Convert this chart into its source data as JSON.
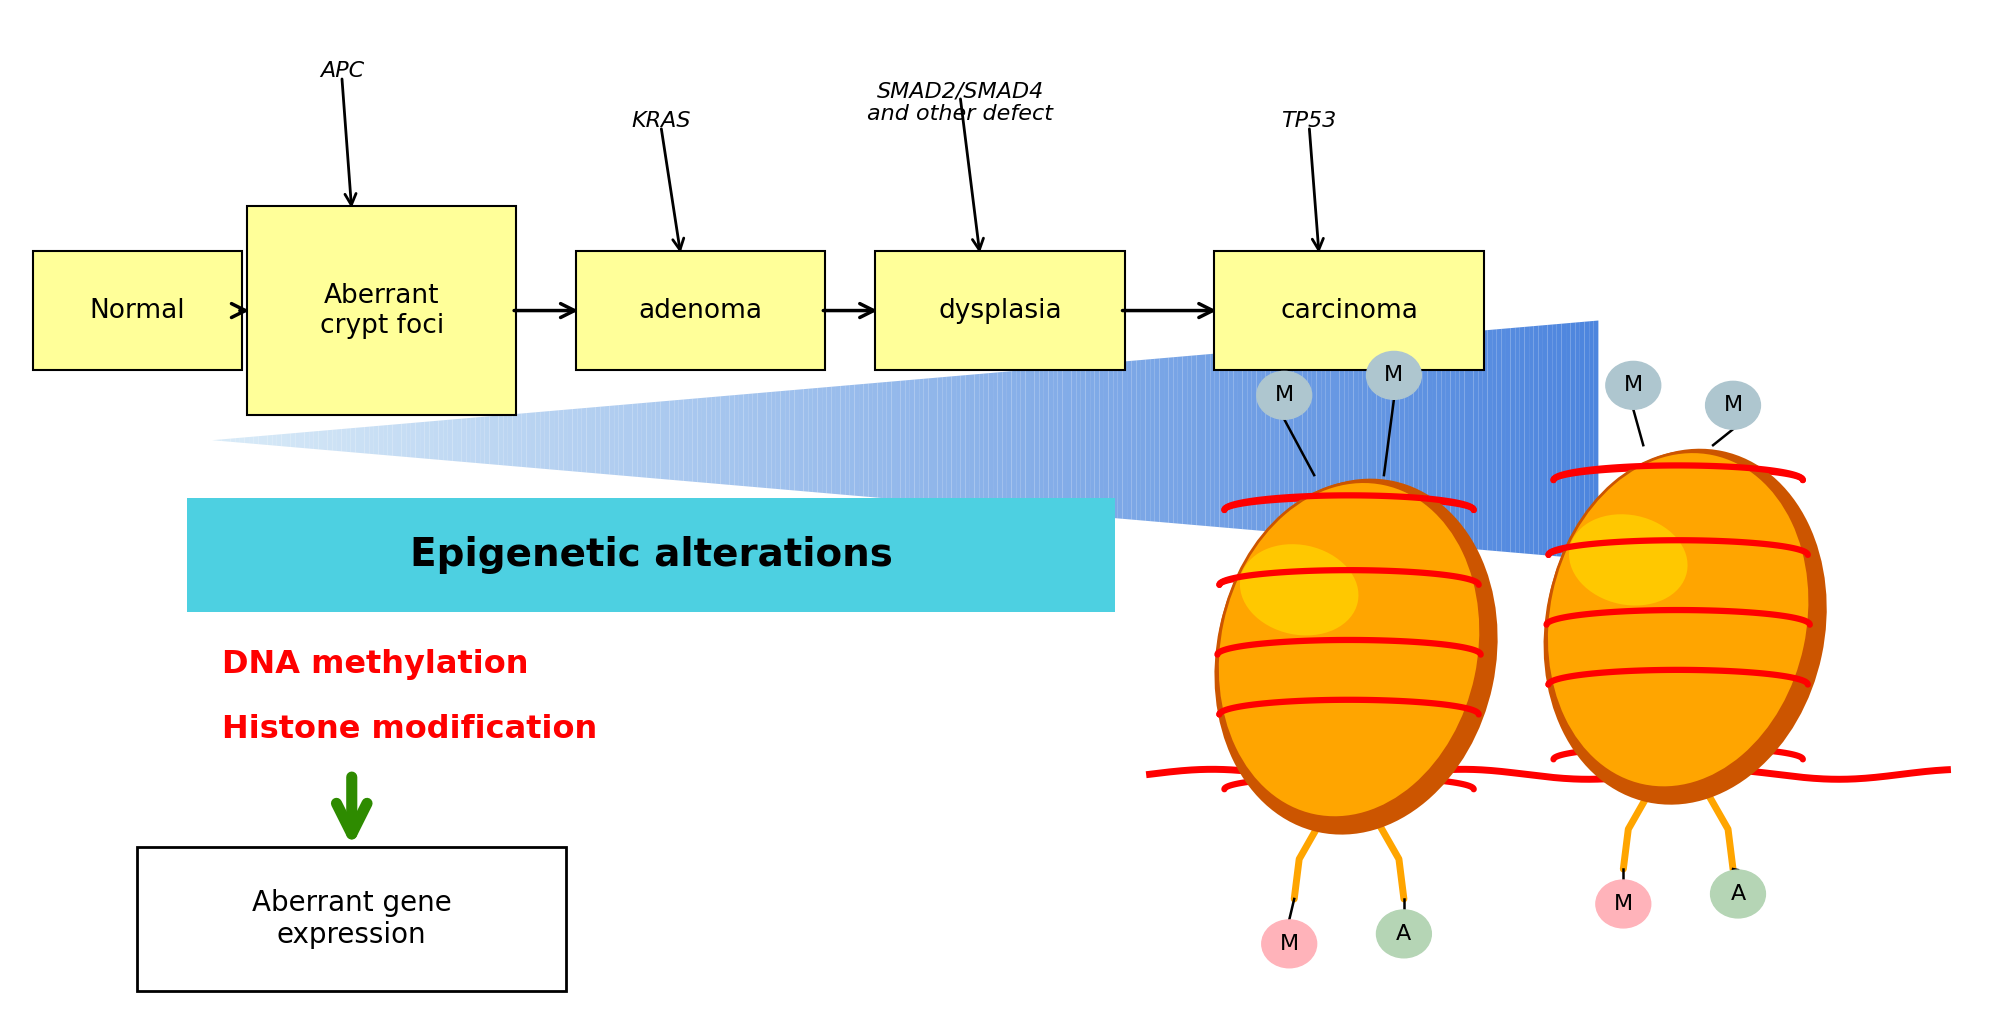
{
  "fig_width": 20.0,
  "fig_height": 10.3,
  "bg_color": "#ffffff",
  "box_fill": "#ffff99",
  "box_edge": "#000000",
  "stages": [
    "Normal",
    "Aberrant\ncrypt foci",
    "adenoma",
    "dysplasia",
    "carcinoma"
  ],
  "gene_labels": [
    "APC",
    "KRAS",
    "SMAD2/SMAD4\nand other defect",
    "TP53"
  ],
  "epigenetic_box_color": "#4dd0e1",
  "epigenetic_text": "Epigenetic alterations",
  "dna_text": "DNA methylation",
  "histone_text": "Histone modification",
  "red_text_color": "#ff0000",
  "aberrant_text": "Aberrant gene\nexpression",
  "top_m_color": "#aec6cf",
  "bottom_m_color": "#ffb3ba",
  "bottom_a_color": "#b5d5b5"
}
